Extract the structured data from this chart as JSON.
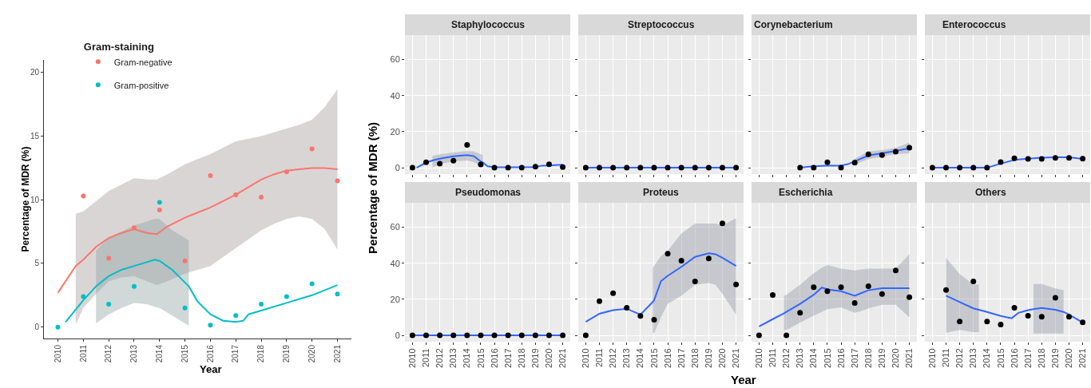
{
  "chart_data": [
    {
      "type": "scatter",
      "xlabel": "Year",
      "ylabel": "Percentage of MDR (%)",
      "legend_title": "Gram-staining",
      "legend": "top left",
      "grid": false,
      "line_style": "solid",
      "x": [
        2010,
        2011,
        2012,
        2013,
        2014,
        2015,
        2016,
        2017,
        2018,
        2019,
        2020,
        2021
      ],
      "xlim": [
        2009.45,
        2021.55
      ],
      "xticks": [
        2010,
        2011,
        2012,
        2013,
        2014,
        2015,
        2016,
        2017,
        2018,
        2019,
        2020,
        2021
      ],
      "ylim": [
        -0.9,
        21
      ],
      "yticks": [
        0,
        5,
        10,
        15,
        20
      ],
      "series": [
        {
          "name": "Gram-negative",
          "marker": "circle",
          "color": "#f8766d",
          "values": [
            null,
            10.3,
            5.4,
            7.8,
            9.2,
            5.2,
            11.9,
            10.4,
            10.2,
            12.2,
            14.0,
            11.5
          ]
        },
        {
          "name": "Gram-positive",
          "marker": "circle",
          "color": "#00bfc4",
          "values": [
            0,
            2.4,
            1.8,
            3.2,
            9.8,
            1.5,
            0.15,
            0.9,
            1.8,
            2.4,
            3.4,
            2.6
          ]
        },
        {
          "type": "line",
          "color": "#f8766d",
          "x": [
            2010,
            2010.5,
            2010.7,
            2011,
            2011.5,
            2012,
            2012.5,
            2013,
            2013.5,
            2013.9,
            2014.3,
            2015,
            2015.5,
            2016,
            2016.5,
            2017,
            2017.5,
            2018,
            2018.5,
            2019,
            2019.5,
            2020,
            2020.5,
            2021
          ],
          "values": [
            2.7,
            4.2,
            4.8,
            5.3,
            6.3,
            7.0,
            7.4,
            7.7,
            7.4,
            7.3,
            7.9,
            8.6,
            9.0,
            9.4,
            9.9,
            10.4,
            11.0,
            11.6,
            12.0,
            12.3,
            12.4,
            12.5,
            12.5,
            12.4
          ],
          "lower": [
            null,
            null,
            0.2,
            1.5,
            2.6,
            3.6,
            3.9,
            4.0,
            3.6,
            3.3,
            3.6,
            4.2,
            4.5,
            4.8,
            5.5,
            6.2,
            6.9,
            7.6,
            8.1,
            8.5,
            8.7,
            8.5,
            7.7,
            6.1
          ],
          "upper": [
            null,
            null,
            8.9,
            9.1,
            9.9,
            10.7,
            11.2,
            11.7,
            11.6,
            11.6,
            12.0,
            12.8,
            13.2,
            13.6,
            14.1,
            14.6,
            14.8,
            15.0,
            15.3,
            15.6,
            15.9,
            16.3,
            17.3,
            18.7
          ]
        },
        {
          "type": "line",
          "color": "#00bfc4",
          "x": [
            2010.3,
            2011,
            2011.5,
            2012,
            2012.5,
            2013,
            2013.5,
            2013.8,
            2014,
            2014.5,
            2015,
            2015.15,
            2015.5,
            2016,
            2016.5,
            2017,
            2017.3,
            2017.5,
            2018,
            2019,
            2020,
            2021
          ],
          "values": [
            0.4,
            2.1,
            3.2,
            4.0,
            4.5,
            4.8,
            5.1,
            5.3,
            5.2,
            4.5,
            3.5,
            3.2,
            2.0,
            1.0,
            0.5,
            0.4,
            0.5,
            1.0,
            1.3,
            1.9,
            2.5,
            3.3
          ],
          "lower": [
            null,
            null,
            0.3,
            1.0,
            1.5,
            1.9,
            1.8,
            1.6,
            1.5,
            0.9,
            0.3,
            0.1,
            null,
            null,
            null,
            null,
            null,
            null,
            null,
            null,
            null,
            null
          ],
          "upper": [
            null,
            null,
            6.0,
            7.0,
            7.5,
            8.0,
            8.3,
            8.5,
            8.5,
            7.6,
            7.0,
            6.8,
            null,
            null,
            null,
            null,
            null,
            null,
            null,
            null,
            null,
            null
          ]
        }
      ]
    },
    {
      "type": "scatter",
      "title": "Staphylococcus",
      "ylabel": "Percentage of MDR (%)",
      "grid": true,
      "legend": false,
      "line_style": "solid",
      "tick_labels": "y",
      "x": [
        2010,
        2011,
        2012,
        2013,
        2014,
        2015,
        2016,
        2017,
        2018,
        2019,
        2020,
        2021
      ],
      "xlim": [
        2009.45,
        2021.55
      ],
      "xticks": [
        2010,
        2011,
        2012,
        2013,
        2014,
        2015,
        2016,
        2017,
        2018,
        2019,
        2020,
        2021
      ],
      "ylim": [
        -3.5,
        73.5
      ],
      "yticks": [
        0,
        20,
        40,
        60
      ],
      "series": [
        {
          "marker": "circle",
          "color": "#000000",
          "values": [
            0,
            3.0,
            2.2,
            3.9,
            12.6,
            1.8,
            0,
            0,
            0,
            0.6,
            1.9,
            0.4
          ]
        },
        {
          "type": "line",
          "color": "#3366ff",
          "x": [
            2010.3,
            2011,
            2011.46,
            2012,
            2013,
            2014,
            2014.5,
            2015,
            2015.14,
            2015.5,
            2016,
            2017,
            2018,
            2019,
            2019.5,
            2020,
            2021
          ],
          "values": [
            0,
            2.8,
            4.0,
            5.0,
            6.3,
            7.0,
            6.4,
            3.5,
            3.0,
            0.8,
            0.3,
            0.3,
            0.3,
            0.4,
            1.2,
            1.3,
            1.7
          ],
          "lower": [
            null,
            null,
            0.2,
            2.0,
            3.5,
            4.0,
            3.0,
            1.0,
            0.5,
            null,
            null,
            null,
            null,
            null,
            null,
            null,
            null
          ],
          "upper": [
            null,
            null,
            6.5,
            7.5,
            8.5,
            9.3,
            9.0,
            7.5,
            7.0,
            null,
            null,
            null,
            null,
            null,
            null,
            null,
            null
          ]
        }
      ]
    },
    {
      "type": "scatter",
      "title": "Streptococcus",
      "grid": true,
      "legend": false,
      "line_style": "solid",
      "tick_labels": false,
      "x": [
        2010,
        2011,
        2012,
        2013,
        2014,
        2015,
        2016,
        2017,
        2018,
        2019,
        2020,
        2021
      ],
      "xlim": [
        2009.45,
        2021.55
      ],
      "xticks": [
        2010,
        2011,
        2012,
        2013,
        2014,
        2015,
        2016,
        2017,
        2018,
        2019,
        2020,
        2021
      ],
      "ylim": [
        -3.5,
        73.5
      ],
      "yticks": [
        0,
        20,
        40,
        60
      ],
      "series": [
        {
          "marker": "circle",
          "color": "#000000",
          "values": [
            0,
            0,
            0,
            0,
            0,
            0,
            0,
            0,
            0,
            0,
            0,
            0
          ]
        },
        {
          "type": "line",
          "color": "#3366ff",
          "x": [
            2010,
            2021
          ],
          "values": [
            0,
            0
          ]
        }
      ]
    },
    {
      "type": "scatter",
      "title": "Corynebacterium",
      "grid": true,
      "legend": false,
      "line_style": "solid",
      "tick_labels": false,
      "x": [
        2013,
        2014,
        2015,
        2016,
        2017,
        2018,
        2019,
        2020,
        2021
      ],
      "xlim": [
        2009.45,
        2021.55
      ],
      "xticks": [
        2010,
        2011,
        2012,
        2013,
        2014,
        2015,
        2016,
        2017,
        2018,
        2019,
        2020,
        2021
      ],
      "ylim": [
        -3.5,
        73.5
      ],
      "yticks": [
        0,
        20,
        40,
        60
      ],
      "series": [
        {
          "marker": "circle",
          "color": "#000000",
          "values": [
            0,
            0,
            3.0,
            0,
            2.8,
            7.4,
            7.0,
            8.9,
            11.1
          ]
        },
        {
          "type": "line",
          "color": "#3366ff",
          "x": [
            2013,
            2014,
            2015,
            2016,
            2016.5,
            2016.9,
            2017,
            2018,
            2019,
            2020,
            2021
          ],
          "values": [
            0,
            0.8,
            1.2,
            1.2,
            2.0,
            3.2,
            3.5,
            6.8,
            8.0,
            9.3,
            10.8
          ],
          "lower": [
            null,
            null,
            null,
            null,
            null,
            2.0,
            1.8,
            4.8,
            6.0,
            7.6,
            8.0
          ],
          "upper": [
            null,
            null,
            null,
            null,
            null,
            4.5,
            5.0,
            9.0,
            9.8,
            11.0,
            14.0
          ]
        }
      ]
    },
    {
      "type": "scatter",
      "title": "Enterococcus",
      "grid": true,
      "legend": false,
      "line_style": "solid",
      "tick_labels": false,
      "x": [
        2010,
        2011,
        2012,
        2013,
        2014,
        2015,
        2016,
        2017,
        2018,
        2019,
        2020,
        2021
      ],
      "xlim": [
        2009.45,
        2021.55
      ],
      "xticks": [
        2010,
        2011,
        2012,
        2013,
        2014,
        2015,
        2016,
        2017,
        2018,
        2019,
        2020,
        2021
      ],
      "ylim": [
        -3.5,
        73.5
      ],
      "yticks": [
        0,
        20,
        40,
        60
      ],
      "series": [
        {
          "marker": "circle",
          "color": "#000000",
          "values": [
            0,
            0,
            0,
            0,
            0,
            3.1,
            5.2,
            4.9,
            4.9,
            5.5,
            5.5,
            5.0
          ]
        },
        {
          "type": "line",
          "color": "#3366ff",
          "x": [
            2010,
            2011,
            2012,
            2013,
            2014,
            2015,
            2016,
            2017,
            2018,
            2019,
            2020,
            2021
          ],
          "values": [
            0,
            0,
            0,
            0,
            0,
            2.3,
            4.3,
            5.0,
            5.6,
            5.8,
            5.8,
            4.9
          ]
        }
      ]
    },
    {
      "type": "scatter",
      "title": "Pseudomonas",
      "grid": true,
      "legend": false,
      "line_style": "solid",
      "x": [
        2010,
        2011,
        2012,
        2013,
        2014,
        2015,
        2016,
        2017,
        2018,
        2019,
        2020,
        2021
      ],
      "xlim": [
        2009.45,
        2021.55
      ],
      "xticks": [
        2010,
        2011,
        2012,
        2013,
        2014,
        2015,
        2016,
        2017,
        2018,
        2019,
        2020,
        2021
      ],
      "ylim": [
        -3.5,
        73.5
      ],
      "yticks": [
        0,
        20,
        40,
        60
      ],
      "series": [
        {
          "marker": "circle",
          "color": "#000000",
          "values": [
            0,
            0,
            0,
            0,
            0,
            0,
            0,
            0,
            0,
            0,
            0,
            0
          ]
        },
        {
          "type": "line",
          "color": "#3366ff",
          "x": [
            2010,
            2021
          ],
          "values": [
            0,
            0
          ]
        }
      ]
    },
    {
      "type": "scatter",
      "title": "Proteus",
      "grid": true,
      "legend": false,
      "line_style": "solid",
      "tick_labels": "x",
      "x": [
        2010,
        2011,
        2012,
        2013,
        2014,
        2015,
        2016,
        2017,
        2018,
        2019,
        2020,
        2021
      ],
      "xlim": [
        2009.45,
        2021.55
      ],
      "xticks": [
        2010,
        2011,
        2012,
        2013,
        2014,
        2015,
        2016,
        2017,
        2018,
        2019,
        2020,
        2021
      ],
      "ylim": [
        -3.5,
        73.5
      ],
      "yticks": [
        0,
        20,
        40,
        60
      ],
      "series": [
        {
          "marker": "circle",
          "color": "#000000",
          "values": [
            0,
            19.0,
            23.4,
            15.3,
            10.8,
            8.7,
            45.3,
            41.4,
            29.9,
            42.6,
            62.1,
            28.3
          ]
        },
        {
          "type": "line",
          "color": "#3366ff",
          "x": [
            2010,
            2011,
            2012,
            2013,
            2014,
            2014.9,
            2015,
            2015.5,
            2016,
            2017,
            2018,
            2019,
            2019.5,
            2020,
            2021
          ],
          "values": [
            7.5,
            12.0,
            14.0,
            14.8,
            11.5,
            18.5,
            19.5,
            30.0,
            33.0,
            38.0,
            43.5,
            45.5,
            45.0,
            43.0,
            38.5
          ],
          "lower": [
            null,
            null,
            null,
            null,
            null,
            1.5,
            1.0,
            10.0,
            17.5,
            22.0,
            28.0,
            29.0,
            28.0,
            23.0,
            11.5
          ],
          "upper": [
            null,
            null,
            null,
            null,
            null,
            37.5,
            38.5,
            44.0,
            47.0,
            56.5,
            62.0,
            62.0,
            62.0,
            61.0,
            65.0
          ]
        }
      ]
    },
    {
      "type": "scatter",
      "title": "Escherichia",
      "xlabel": "Year",
      "grid": true,
      "legend": false,
      "line_style": "solid",
      "tick_labels": "x",
      "x": [
        2010,
        2011,
        2012,
        2013,
        2014,
        2015,
        2016,
        2017,
        2018,
        2019,
        2020,
        2021
      ],
      "xlim": [
        2009.45,
        2021.55
      ],
      "xticks": [
        2010,
        2011,
        2012,
        2013,
        2014,
        2015,
        2016,
        2017,
        2018,
        2019,
        2020,
        2021
      ],
      "ylim": [
        -3.5,
        73.5
      ],
      "yticks": [
        0,
        20,
        40,
        60
      ],
      "series": [
        {
          "marker": "circle",
          "color": "#000000",
          "values": [
            0,
            22.4,
            0,
            12.5,
            26.7,
            24.5,
            26.7,
            18.0,
            27.3,
            22.9,
            36.0,
            21.2
          ]
        },
        {
          "type": "line",
          "color": "#3366ff",
          "x": [
            2010,
            2011,
            2011.83,
            2012,
            2013,
            2014,
            2014.6,
            2015,
            2016,
            2017,
            2017.5,
            2018,
            2019,
            2020,
            2021
          ],
          "values": [
            5.0,
            9.0,
            12.3,
            13.0,
            17.5,
            22.5,
            26.5,
            25.5,
            24.5,
            22.0,
            23.5,
            25.0,
            26.2,
            26.2,
            26.2
          ],
          "lower": [
            null,
            null,
            2.5,
            3.0,
            7.0,
            11.0,
            13.0,
            14.5,
            15.5,
            12.5,
            13.5,
            15.0,
            17.0,
            17.0,
            10.0
          ],
          "upper": [
            null,
            null,
            22.0,
            22.5,
            28.0,
            34.5,
            37.5,
            39.0,
            37.0,
            36.0,
            36.5,
            37.0,
            37.0,
            37.0,
            45.0
          ]
        }
      ]
    },
    {
      "type": "scatter",
      "title": "Others",
      "grid": true,
      "legend": false,
      "line_style": "solid",
      "tick_labels": "x",
      "x": [
        2011,
        2012,
        2013,
        2014,
        2015,
        2016,
        2017,
        2018,
        2019,
        2020,
        2021
      ],
      "xlim": [
        2009.45,
        2021.55
      ],
      "xticks": [
        2010,
        2011,
        2012,
        2013,
        2014,
        2015,
        2016,
        2017,
        2018,
        2019,
        2020,
        2021
      ],
      "ylim": [
        -3.5,
        73.5
      ],
      "yticks": [
        0,
        20,
        40,
        60
      ],
      "series": [
        {
          "marker": "circle",
          "color": "#000000",
          "values": [
            25.2,
            7.7,
            29.9,
            7.7,
            6.0,
            15.3,
            10.9,
            10.3,
            20.8,
            10.3,
            7.2
          ]
        },
        {
          "type": "line",
          "color": "#3366ff",
          "x": [
            2011,
            2012,
            2013,
            2013.4,
            2014,
            2015,
            2015.8,
            2016.3,
            2017,
            2017.4,
            2018,
            2019,
            2019.6,
            2020,
            2021
          ],
          "values": [
            22.0,
            18.5,
            15.0,
            14.2,
            13.0,
            10.8,
            9.5,
            12.5,
            14.0,
            14.5,
            15.2,
            14.2,
            13.0,
            11.5,
            7.2
          ],
          "lower": [
            1.5,
            3.0,
            1.8,
            1.8,
            null,
            null,
            null,
            null,
            null,
            1.0,
            1.0,
            1.0,
            1.0,
            null,
            null
          ],
          "upper": [
            43.0,
            34.0,
            28.3,
            28.3,
            null,
            null,
            null,
            null,
            null,
            28.5,
            28.5,
            26.0,
            25.0,
            null,
            null
          ]
        }
      ]
    }
  ]
}
